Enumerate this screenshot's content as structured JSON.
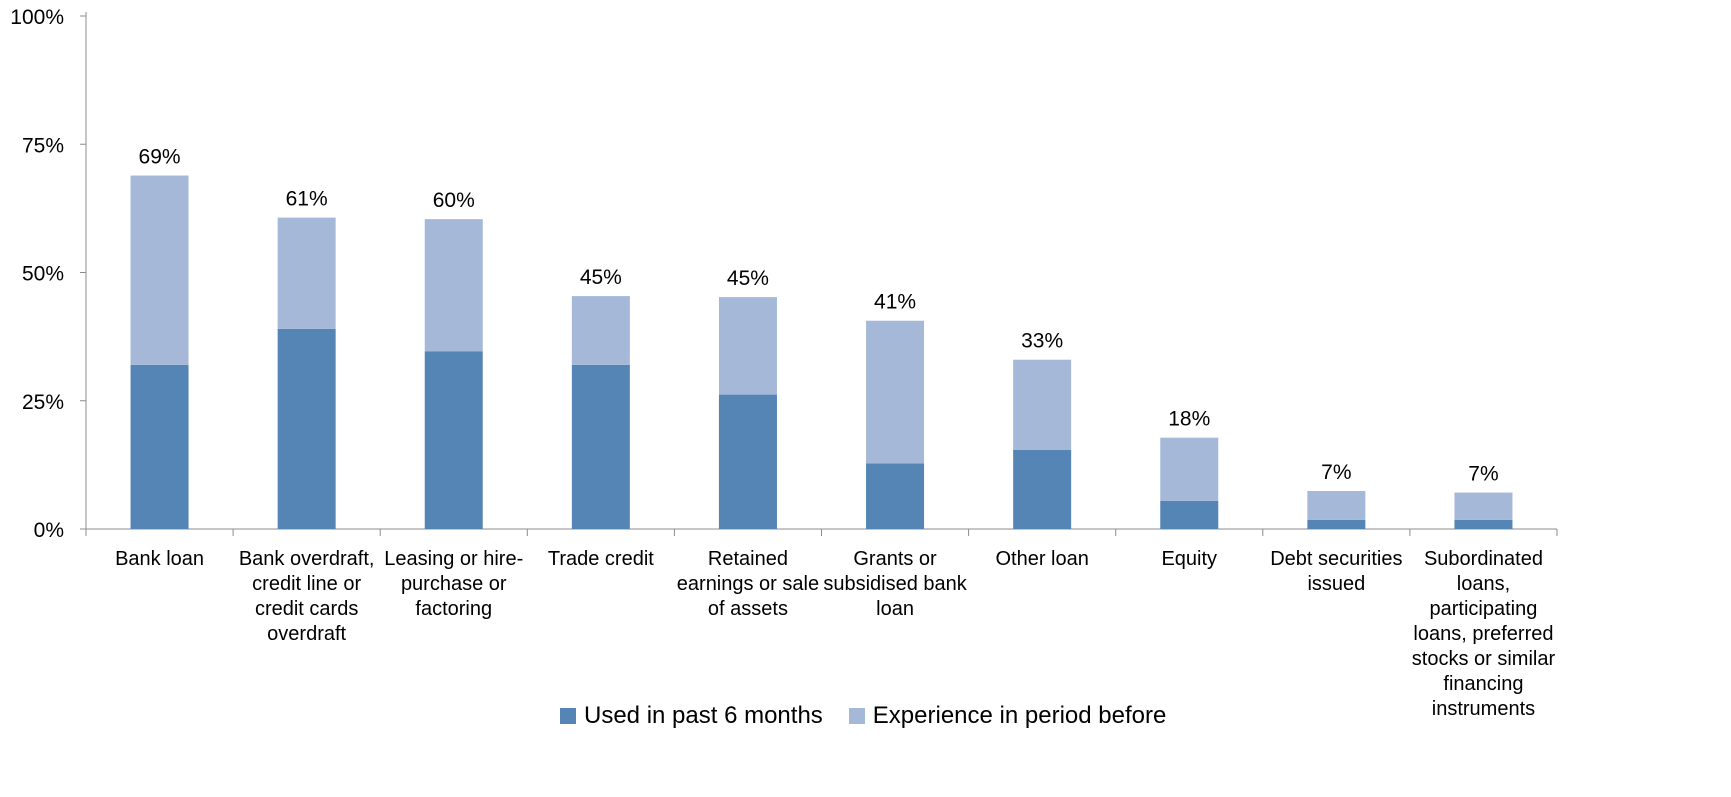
{
  "chart_data": {
    "type": "bar",
    "stacked": true,
    "categories": [
      "Bank loan",
      "Bank overdraft, credit line or credit cards overdraft",
      "Leasing or hire-purchase or factoring",
      "Trade credit",
      "Retained earnings or sale of assets",
      "Grants or subsidised bank loan",
      "Other loan",
      "Equity",
      "Debt securities issued",
      "Subordinated loans, participating loans, preferred stocks or similar financing instruments"
    ],
    "category_lines": [
      [
        "Bank loan"
      ],
      [
        "Bank overdraft,",
        "credit line or",
        "credit cards",
        "overdraft"
      ],
      [
        "Leasing or hire-",
        "purchase or",
        "factoring"
      ],
      [
        "Trade credit"
      ],
      [
        "Retained",
        "earnings or sale",
        "of assets"
      ],
      [
        "Grants or",
        "subsidised bank",
        "loan"
      ],
      [
        "Other loan"
      ],
      [
        "Equity"
      ],
      [
        "Debt securities",
        "issued"
      ],
      [
        "Subordinated",
        "loans,",
        "participating",
        "loans, preferred",
        "stocks or similar",
        "financing",
        "instruments"
      ]
    ],
    "series": [
      {
        "name": "Used in past 6 months",
        "color": "#5585b5",
        "values": [
          32,
          39,
          34.6,
          32,
          26.2,
          12.8,
          15.4,
          5.5,
          1.8,
          1.8
        ]
      },
      {
        "name": "Experience in period before",
        "color": "#a5b8d8",
        "values": [
          36.9,
          21.7,
          25.8,
          13.4,
          19,
          27.8,
          17.6,
          12.3,
          5.6,
          5.3
        ]
      }
    ],
    "total_labels": [
      "69%",
      "61%",
      "60%",
      "45%",
      "45%",
      "41%",
      "33%",
      "18%",
      "7%",
      "7%"
    ],
    "y_ticks": [
      "0%",
      "25%",
      "50%",
      "75%",
      "100%"
    ],
    "y_tick_values": [
      0,
      25,
      50,
      75,
      100
    ],
    "ylim": [
      0,
      100
    ],
    "grid": false,
    "legend_position": "bottom"
  }
}
